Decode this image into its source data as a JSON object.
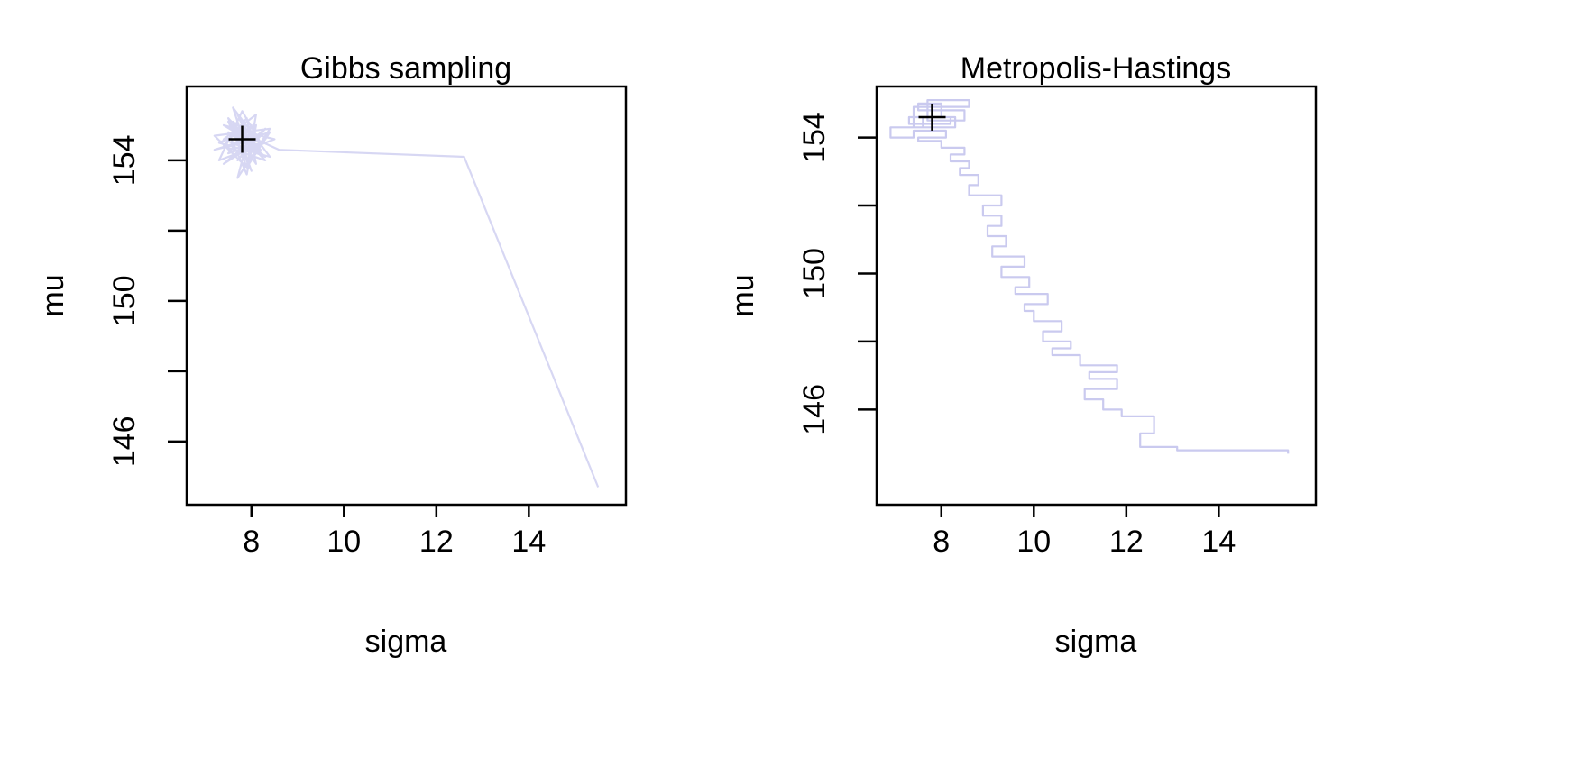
{
  "chart_data": [
    {
      "type": "line",
      "title": "Gibbs sampling",
      "xlabel": "sigma",
      "ylabel": "mu",
      "xlim": [
        6.6,
        16.1
      ],
      "ylim": [
        144.2,
        156.1
      ],
      "xticks": [
        8,
        10,
        12,
        14
      ],
      "yticks": [
        146,
        148,
        150,
        152,
        154
      ],
      "ytick_labels": [
        146,
        150,
        154
      ],
      "grid": false,
      "trace_color": "#7b7bd6",
      "trace_opacity": 0.3,
      "estimate": {
        "x": 7.8,
        "y": 154.6
      },
      "series": [
        {
          "x": [
            15.5,
            12.6,
            8.6,
            7.6,
            8.3,
            7.4,
            8.1,
            7.9,
            7.2,
            8.4,
            7.7,
            8.0,
            7.5,
            8.2,
            7.8,
            7.3,
            8.5,
            7.6,
            8.1,
            7.9,
            7.4,
            8.3,
            7.7,
            8.0,
            7.5,
            8.2,
            7.8,
            7.6,
            8.4,
            7.3,
            8.1,
            7.9,
            7.5,
            8.2,
            7.7,
            8.0,
            7.4,
            8.3,
            7.8,
            7.6,
            8.1,
            7.2,
            8.4,
            7.9,
            7.5,
            8.0,
            7.7,
            8.2,
            7.4,
            7.9
          ],
          "y": [
            144.7,
            154.1,
            154.3,
            154.9,
            154.1,
            154.6,
            155.3,
            153.8,
            154.7,
            154.9,
            153.5,
            155.0,
            154.2,
            154.5,
            155.4,
            154.0,
            154.6,
            154.9,
            153.9,
            155.2,
            154.4,
            154.0,
            154.8,
            153.7,
            155.1,
            154.3,
            154.7,
            155.5,
            154.1,
            154.5,
            155.0,
            153.6,
            154.8,
            154.2,
            155.3,
            154.4,
            153.9,
            154.9,
            154.1,
            155.1,
            154.6,
            154.3,
            154.8,
            153.8,
            155.2,
            154.5,
            154.0,
            154.7,
            155.0,
            154.6
          ]
        }
      ]
    },
    {
      "type": "line",
      "title": "Metropolis-Hastings",
      "xlabel": "sigma",
      "ylabel": "mu",
      "xlim": [
        6.6,
        16.1
      ],
      "ylim": [
        143.2,
        155.5
      ],
      "xticks": [
        8,
        10,
        12,
        14
      ],
      "yticks": [
        146,
        148,
        150,
        152,
        154
      ],
      "ytick_labels": [
        146,
        150,
        154
      ],
      "grid": false,
      "trace_color": "#7b7bd6",
      "trace_opacity": 0.4,
      "estimate": {
        "x": 7.8,
        "y": 154.6
      },
      "series": [
        {
          "x": [
            15.5,
            15.5,
            13.1,
            13.1,
            12.3,
            12.3,
            12.6,
            12.6,
            12.3,
            11.9,
            11.9,
            11.5,
            11.5,
            11.1,
            11.1,
            11.8,
            11.8,
            11.2,
            11.2,
            11.8,
            11.8,
            11.0,
            11.0,
            10.4,
            10.4,
            10.8,
            10.8,
            10.2,
            10.2,
            10.6,
            10.6,
            10.0,
            10.0,
            9.8,
            9.8,
            10.3,
            10.3,
            9.6,
            9.6,
            9.9,
            9.9,
            9.3,
            9.3,
            9.8,
            9.8,
            9.1,
            9.1,
            9.4,
            9.4,
            9.0,
            9.0,
            9.3,
            9.3,
            8.9,
            8.9,
            9.3,
            9.3,
            8.6,
            8.6,
            8.8,
            8.8,
            8.4,
            8.4,
            8.6,
            8.6,
            8.2,
            8.2,
            8.5,
            8.5,
            8.0,
            8.0,
            7.5,
            7.5,
            8.1,
            8.1,
            7.4,
            7.4,
            6.9,
            6.9,
            7.6,
            7.6,
            8.3,
            8.3,
            7.4,
            7.4,
            8.6,
            8.6,
            7.7,
            7.7,
            8.5,
            8.5,
            7.5,
            7.5,
            8.0,
            8.0,
            7.3,
            7.3,
            8.2,
            8.2,
            7.8
          ],
          "y": [
            144.7,
            144.8,
            144.8,
            144.9,
            144.9,
            145.3,
            145.3,
            145.8,
            145.8,
            145.8,
            146.0,
            146.0,
            146.3,
            146.3,
            146.6,
            146.6,
            146.9,
            146.9,
            147.1,
            147.1,
            147.3,
            147.3,
            147.6,
            147.6,
            147.8,
            147.8,
            148.0,
            148.0,
            148.3,
            148.3,
            148.6,
            148.6,
            148.9,
            148.9,
            149.1,
            149.1,
            149.4,
            149.4,
            149.6,
            149.6,
            149.9,
            149.9,
            150.2,
            150.2,
            150.5,
            150.5,
            150.8,
            150.8,
            151.1,
            151.1,
            151.4,
            151.4,
            151.7,
            151.7,
            152.0,
            152.0,
            152.3,
            152.3,
            152.6,
            152.6,
            152.9,
            152.9,
            153.1,
            153.1,
            153.3,
            153.3,
            153.5,
            153.5,
            153.7,
            153.7,
            153.9,
            153.9,
            154.0,
            154.0,
            154.2,
            154.2,
            154.0,
            154.0,
            154.3,
            154.3,
            154.6,
            154.6,
            154.3,
            154.3,
            154.9,
            154.9,
            155.1,
            155.1,
            154.5,
            154.5,
            154.8,
            154.8,
            155.0,
            155.0,
            154.6,
            154.6,
            154.4,
            154.4,
            154.6,
            154.6
          ]
        }
      ]
    }
  ]
}
